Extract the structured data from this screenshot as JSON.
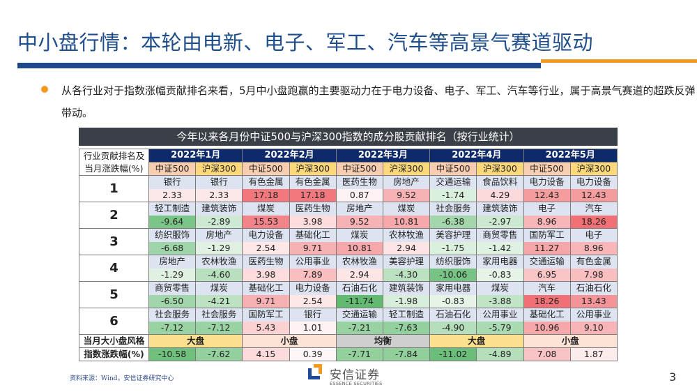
{
  "slide": {
    "title": "中小盘行情：本轮由电新、电子、军工、汽车等高景气赛道驱动",
    "bullet": "从各行业对于指数涨幅贡献排名来看，5月中小盘跑赢的主要驱动力在于电力设备、电子、军工、汽车等行业，属于高景气赛道的超跌反弹带动。",
    "colors": {
      "title_blue": "#1f4e8c",
      "accent_orange": "#f39a1e",
      "header_navy": "#0f2a6b",
      "table_title_bg": "#3b3f47"
    }
  },
  "table": {
    "title": "今年以来各月份中证500与沪深300指数的成分股贡献排名（按行业统计）",
    "row_header": "行业贡献排名及当月涨跌幅(%)",
    "months": [
      "2022年1月",
      "2022年2月",
      "2022年3月",
      "2022年4月",
      "2022年5月"
    ],
    "sub_headers": [
      "中证500",
      "沪深300",
      "中证500",
      "沪深300",
      "中证500",
      "沪深300",
      "中证500",
      "沪深300",
      "中证500",
      "沪深300"
    ],
    "rows": [
      {
        "rank": "1",
        "industries": [
          "银行",
          "银行",
          "有色金属",
          "有色金属",
          "医药生物",
          "房地产",
          "交通运输",
          "食品饮料",
          "电力设备",
          "电力设备"
        ],
        "values": [
          "2.33",
          "2.33",
          "17.18",
          "17.18",
          "0.87",
          "9.52",
          "-1.74",
          "4.29",
          "12.43",
          "12.43"
        ]
      },
      {
        "rank": "2",
        "industries": [
          "轻工制造",
          "建筑装饰",
          "煤炭",
          "医药生物",
          "房地产",
          "煤炭",
          "社会服务",
          "建筑装饰",
          "电子",
          "汽车"
        ],
        "values": [
          "-9.64",
          "-2.89",
          "15.53",
          "3.98",
          "9.52",
          "10.81",
          "-6.38",
          "-2.97",
          "8.96",
          "18.26"
        ]
      },
      {
        "rank": "3",
        "industries": [
          "纺织服饰",
          "房地产",
          "电力设备",
          "基础化工",
          "煤炭",
          "农林牧渔",
          "美容护理",
          "商贸零售",
          "国防军工",
          "电子"
        ],
        "values": [
          "-6.68",
          "-1.29",
          "2.54",
          "9.71",
          "10.81",
          "2.94",
          "-1.75",
          "-1.42",
          "11.27",
          "8.96"
        ]
      },
      {
        "rank": "4",
        "industries": [
          "房地产",
          "农林牧渔",
          "医药生物",
          "公用事业",
          "农林牧渔",
          "美容护理",
          "纺织服饰",
          "家用电器",
          "交通运输",
          "有色金属"
        ],
        "values": [
          "-1.29",
          "-4.60",
          "3.98",
          "7.89",
          "2.94",
          "-4.30",
          "-10.06",
          "-0.83",
          "6.95",
          "7.98"
        ]
      },
      {
        "rank": "5",
        "industries": [
          "商贸零售",
          "煤炭",
          "基础化工",
          "电力设备",
          "石油石化",
          "建筑装饰",
          "家用电器",
          "煤炭",
          "汽车",
          "石油石化"
        ],
        "values": [
          "-6.50",
          "-4.21",
          "9.71",
          "2.54",
          "-11.74",
          "-1.98",
          "-0.83",
          "-3.88",
          "18.26",
          "13.43"
        ]
      },
      {
        "rank": "6",
        "industries": [
          "社会服务",
          "社会服务",
          "国防军工",
          "银行",
          "交通运输",
          "轻工制造",
          "石油石化",
          "公用事业",
          "基础化工",
          "公用事业"
        ],
        "values": [
          "-7.12",
          "-7.12",
          "5.43",
          "1.01",
          "-7.21",
          "-7.63",
          "-4.90",
          "-5.79",
          "10.96",
          "9.10"
        ]
      }
    ],
    "style_row": {
      "label": "当月大小盘风格",
      "values": [
        "大盘",
        "小盘",
        "均衡",
        "大盘",
        "小盘"
      ],
      "colors": [
        "#fbe08f",
        "#fde2d6",
        "#cfcfcf",
        "#fbe08f",
        "#fde2d6"
      ]
    },
    "index_row": {
      "label": "指数涨跌幅(%)",
      "values": [
        "-10.58",
        "-7.62",
        "4.15",
        "0.39",
        "-7.71",
        "-7.84",
        "-11.02",
        "-4.89",
        "7.08",
        "1.87"
      ]
    }
  },
  "footer": {
    "source": "资料来源：Wind，安信证券研究中心",
    "logo_cn": "安信证券",
    "logo_en": "ESSENCE SECURITIES",
    "page_number": "3"
  }
}
